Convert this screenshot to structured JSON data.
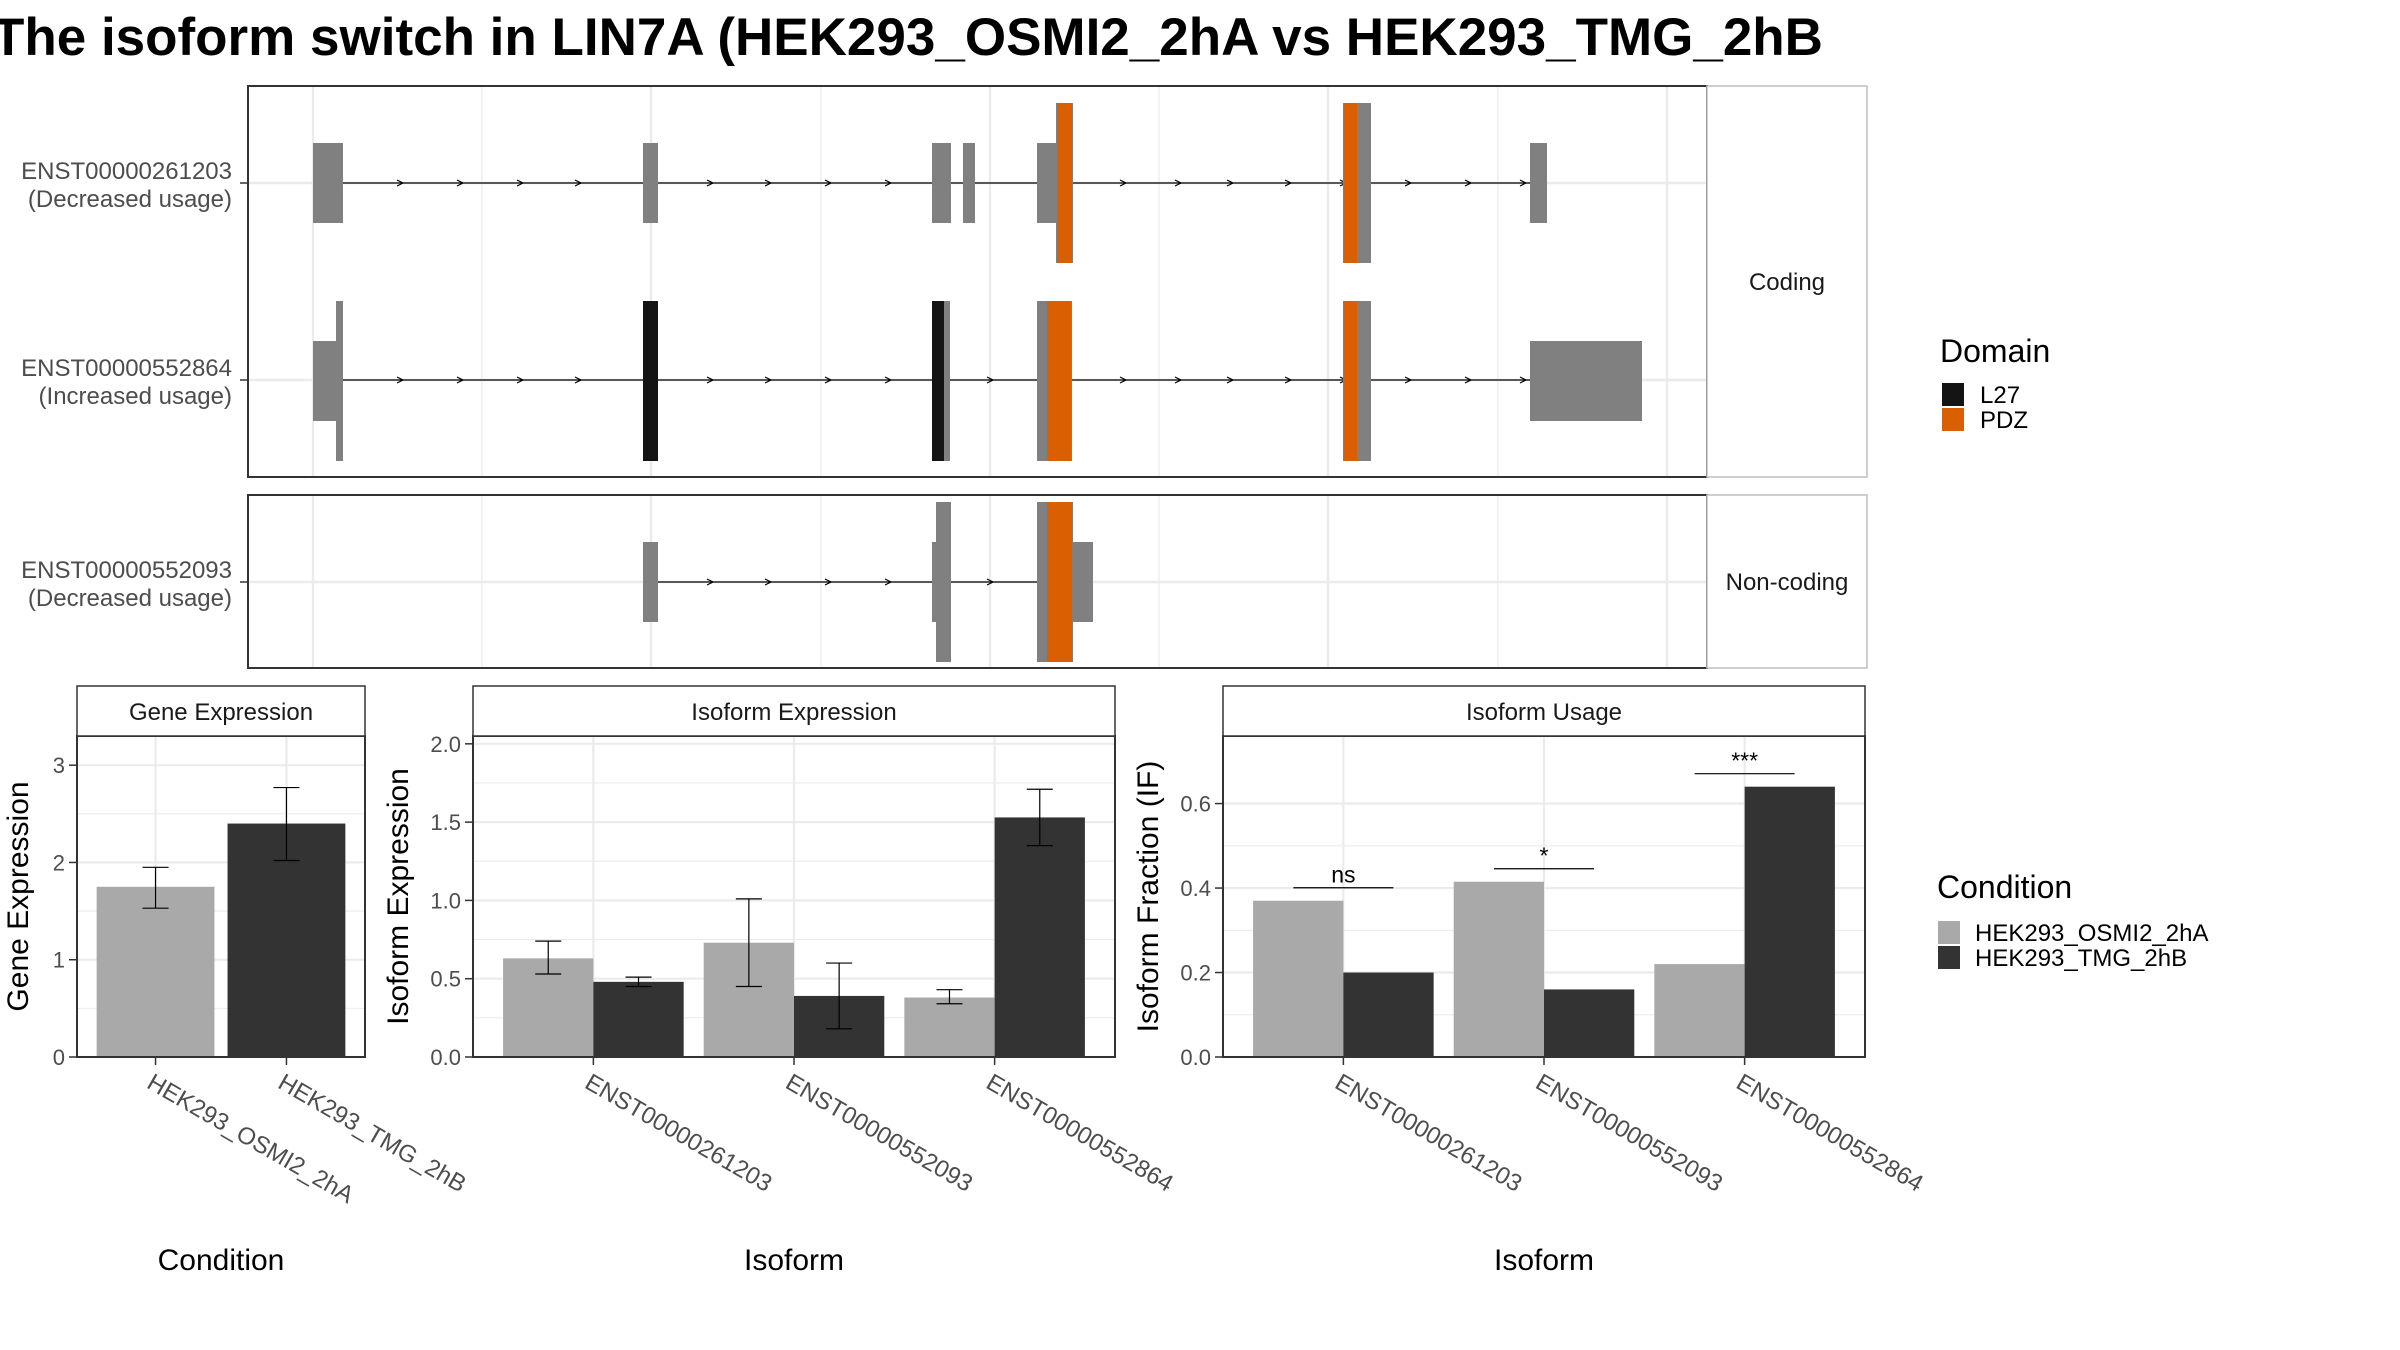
{
  "title": "The isoform switch in LIN7A (HEK293_OSMI2_2hA vs HEK293_TMG_2hB",
  "colors": {
    "exon": "#808080",
    "L27": "#141414",
    "PDZ": "#d95f02",
    "cond1": "#a9a9a9",
    "cond2": "#333333",
    "panel_border": "#333333",
    "strip_border": "#bfbfbf",
    "grid": "#ebebeb"
  },
  "structure": {
    "facet_labels": [
      "Coding",
      "Non-coding"
    ],
    "transcripts": [
      {
        "id": "ENST00000261203",
        "usage": "(Decreased usage)",
        "facet": "Coding"
      },
      {
        "id": "ENST00000552864",
        "usage": "(Increased usage)",
        "facet": "Coding"
      },
      {
        "id": "ENST00000552093",
        "usage": "(Decreased usage)",
        "facet": "Non-coding"
      }
    ],
    "domain_legend": {
      "title": "Domain",
      "items": [
        {
          "label": "L27",
          "color": "#141414"
        },
        {
          "label": "PDZ",
          "color": "#d95f02"
        }
      ]
    }
  },
  "condition_legend": {
    "title": "Condition",
    "items": [
      {
        "label": "HEK293_OSMI2_2hA",
        "color": "#a9a9a9"
      },
      {
        "label": "HEK293_TMG_2hB",
        "color": "#333333"
      }
    ]
  },
  "chart_data": [
    {
      "type": "bar",
      "strip": "Gene Expression",
      "xlabel": "Condition",
      "ylabel": "Gene Expression",
      "ylim": [
        0,
        3.3
      ],
      "yticks": [
        0,
        1,
        2,
        3
      ],
      "categories": [
        "HEK293_OSMI2_2hA",
        "HEK293_TMG_2hB"
      ],
      "values": [
        1.75,
        2.4
      ],
      "error_low": [
        1.53,
        2.02
      ],
      "error_high": [
        1.95,
        2.77
      ],
      "grid": true
    },
    {
      "type": "bar",
      "strip": "Isoform Expression",
      "xlabel": "Isoform",
      "ylabel": "Isoform Expression",
      "ylim": [
        0,
        2.05
      ],
      "yticks": [
        0.0,
        0.5,
        1.0,
        1.5,
        2.0
      ],
      "categories": [
        "ENST00000261203",
        "ENST00000552093",
        "ENST00000552864"
      ],
      "series": [
        {
          "name": "HEK293_OSMI2_2hA",
          "values": [
            0.63,
            0.73,
            0.38
          ],
          "error_low": [
            0.53,
            0.45,
            0.34
          ],
          "error_high": [
            0.74,
            1.01,
            0.43
          ]
        },
        {
          "name": "HEK293_TMG_2hB",
          "values": [
            0.48,
            0.39,
            1.53
          ],
          "error_low": [
            0.45,
            0.18,
            1.35
          ],
          "error_high": [
            0.51,
            0.6,
            1.71
          ]
        }
      ],
      "grid": true
    },
    {
      "type": "bar",
      "strip": "Isoform Usage",
      "xlabel": "Isoform",
      "ylabel": "Isoform Fraction (IF)",
      "ylim": [
        0,
        0.76
      ],
      "yticks": [
        0.0,
        0.2,
        0.4,
        0.6
      ],
      "categories": [
        "ENST00000261203",
        "ENST00000552093",
        "ENST00000552864"
      ],
      "series": [
        {
          "name": "HEK293_OSMI2_2hA",
          "values": [
            0.37,
            0.415,
            0.22
          ]
        },
        {
          "name": "HEK293_TMG_2hB",
          "values": [
            0.2,
            0.16,
            0.64
          ]
        }
      ],
      "significance": [
        "ns",
        "*",
        "***"
      ],
      "grid": true
    }
  ]
}
